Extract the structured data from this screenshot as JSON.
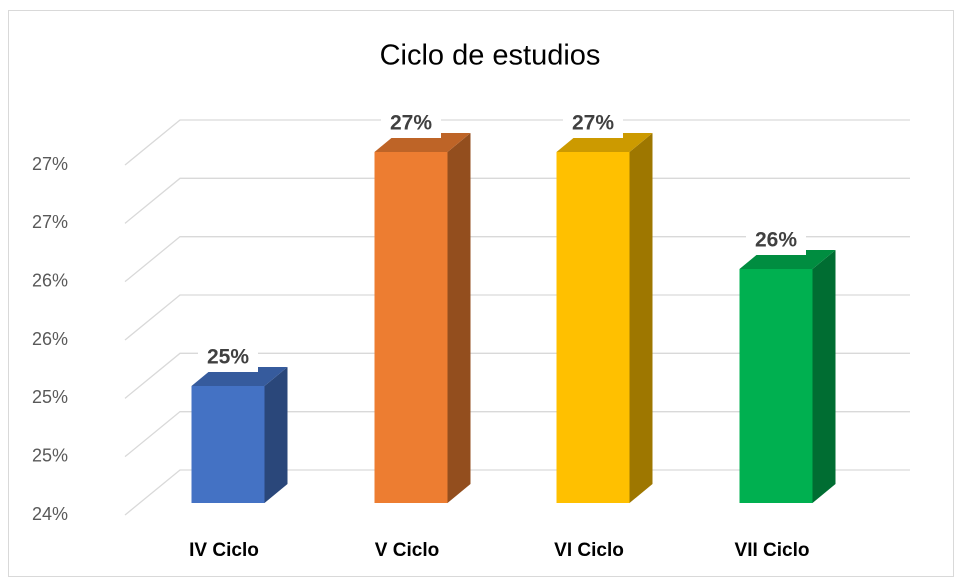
{
  "chart_data": {
    "type": "bar3d",
    "title": "Ciclo de estudios",
    "categories": [
      "IV Ciclo",
      "V Ciclo",
      "VI Ciclo",
      "VII Ciclo"
    ],
    "values": [
      25,
      27,
      27,
      26
    ],
    "value_labels": [
      "25%",
      "27%",
      "27%",
      "26%"
    ],
    "colors": [
      "#4472c4",
      "#ed7d31",
      "#ffc000",
      "#00b050"
    ],
    "ylim": [
      24,
      27
    ],
    "yticks": [
      {
        "value": 24,
        "label": "24%"
      },
      {
        "value": 24.5,
        "label": "25%"
      },
      {
        "value": 25,
        "label": "25%"
      },
      {
        "value": 25.5,
        "label": "26%"
      },
      {
        "value": 26,
        "label": "26%"
      },
      {
        "value": 26.5,
        "label": "27%"
      },
      {
        "value": 27,
        "label": "27%"
      }
    ],
    "grid": true
  }
}
